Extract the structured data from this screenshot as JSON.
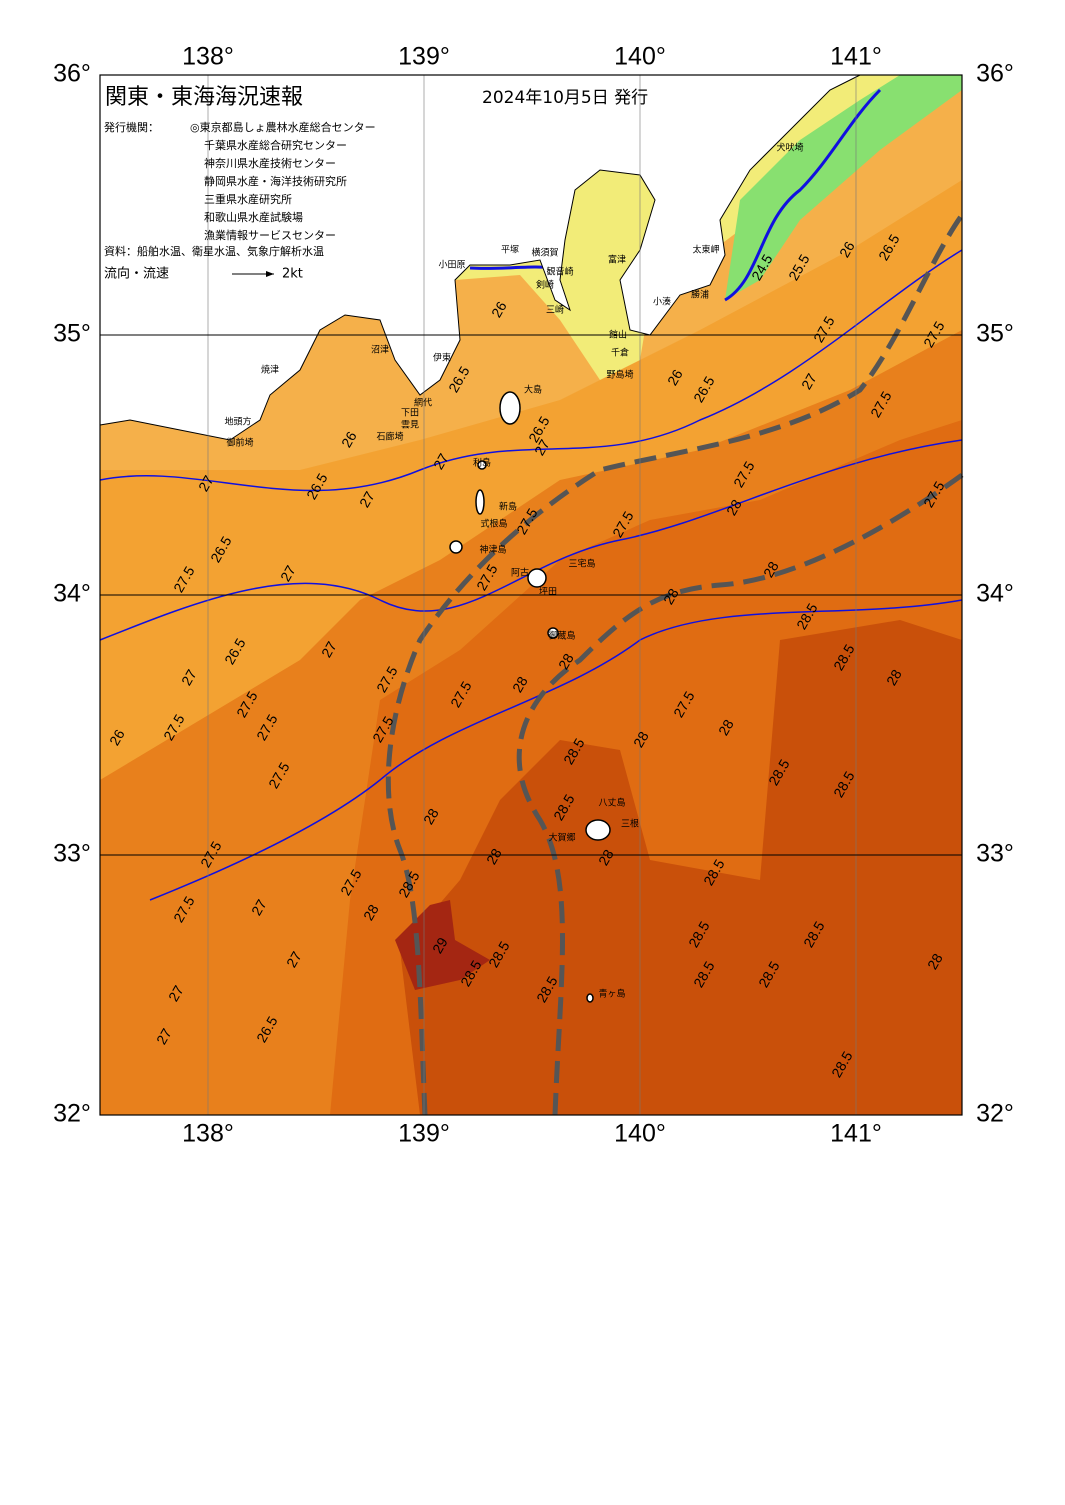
{
  "header": {
    "title": "関東・東海海況速報",
    "date": "2024年10月5日 発行"
  },
  "issuers": {
    "label": "発行機関：",
    "items": [
      "◎東京都島しょ農林水産総合センター",
      "千葉県水産総合研究センター",
      "神奈川県水産技術センター",
      "静岡県水産・海洋技術研究所",
      "三重県水産研究所",
      "和歌山県水産試験場",
      "漁業情報サービスセンター"
    ]
  },
  "source": "資料：船舶水温、衛星水温、気象庁解析水温",
  "legend": {
    "label": "流向・流速",
    "speed": "2kt"
  },
  "map": {
    "lon_ticks": [
      {
        "value": 138,
        "label": "138°"
      },
      {
        "value": 139,
        "label": "139°"
      },
      {
        "value": 140,
        "label": "140°"
      },
      {
        "value": 141,
        "label": "141°"
      }
    ],
    "lat_ticks": [
      {
        "value": 36,
        "label": "36°"
      },
      {
        "value": 35,
        "label": "35°"
      },
      {
        "value": 34,
        "label": "34°"
      },
      {
        "value": 33,
        "label": "33°"
      },
      {
        "value": 32,
        "label": "32°"
      }
    ],
    "places": [
      "犬吠埼",
      "太東岬",
      "勝浦",
      "小湊",
      "富津",
      "横須賀",
      "観音崎",
      "平塚",
      "小田原",
      "剣崎",
      "三崎",
      "館山",
      "千倉",
      "野島埼",
      "沼津",
      "伊東",
      "焼津",
      "網代",
      "下田",
      "雲見",
      "石廊埼",
      "地頭方",
      "御前埼",
      "大島",
      "利島",
      "新島",
      "式根島",
      "神津島",
      "三宅島",
      "阿古",
      "坪田",
      "御蔵島",
      "八丈島",
      "三根",
      "大賀郷",
      "青ヶ島"
    ],
    "contour_labels": [
      "24.5",
      "25.5",
      "26",
      "26.5",
      "27.5",
      "27.5",
      "27",
      "27.5",
      "26.5",
      "26",
      "26",
      "26.5",
      "26.5",
      "27",
      "26",
      "27",
      "27",
      "26.5",
      "27",
      "27.5",
      "27.5",
      "27.5",
      "28",
      "27.5",
      "26.5",
      "27.5",
      "27",
      "27.5",
      "28",
      "28",
      "28.5",
      "26.5",
      "27",
      "28.5",
      "28",
      "28",
      "27.5",
      "27",
      "27.5",
      "28",
      "27.5",
      "27.5",
      "27.5",
      "26",
      "27.5",
      "28.5",
      "28",
      "27.5",
      "28",
      "28.5",
      "28.5",
      "27.5",
      "28",
      "28.5",
      "27.5",
      "28",
      "28",
      "28.5",
      "27.5",
      "28.5",
      "27.5",
      "27",
      "28",
      "29",
      "28.5",
      "28.5",
      "28.5",
      "28.5",
      "27",
      "28.5",
      "28.5",
      "28",
      "27",
      "28.5",
      "26.5",
      "27",
      "28.5"
    ]
  }
}
